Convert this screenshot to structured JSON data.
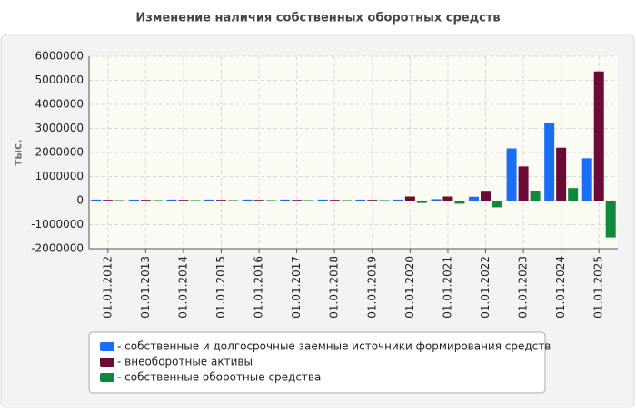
{
  "chart_data": {
    "type": "bar",
    "title": "Изменение наличия собственных оборотных средств",
    "ylabel": "тыс.",
    "categories": [
      "01.01.2012",
      "01.01.2013",
      "01.01.2014",
      "01.01.2015",
      "01.01.2016",
      "01.01.2017",
      "01.01.2018",
      "01.01.2019",
      "01.01.2020",
      "01.01.2021",
      "01.01.2022",
      "01.01.2023",
      "01.01.2024",
      "01.01.2025"
    ],
    "series": [
      {
        "name": "- собственные и долгосрочные заемные источники формирования средств",
        "color": "#1a6ef5",
        "values": [
          40000,
          40000,
          40000,
          40000,
          40000,
          40000,
          40000,
          40000,
          40000,
          60000,
          160000,
          2170000,
          3230000,
          1760000
        ]
      },
      {
        "name": "- внеоборотные активы",
        "color": "#6a0a35",
        "values": [
          30000,
          30000,
          30000,
          30000,
          30000,
          30000,
          30000,
          30000,
          170000,
          170000,
          370000,
          1420000,
          2200000,
          5370000
        ]
      },
      {
        "name": "- собственные оборотные средства",
        "color": "#0f8a3a",
        "values": [
          20000,
          20000,
          20000,
          20000,
          20000,
          20000,
          20000,
          20000,
          -100000,
          -130000,
          -280000,
          400000,
          520000,
          -1530000
        ]
      }
    ],
    "ylim": [
      -2000000,
      6000000
    ],
    "yticks": [
      -2000000,
      -1000000,
      0,
      1000000,
      2000000,
      3000000,
      4000000,
      5000000,
      6000000
    ],
    "grid": true
  }
}
